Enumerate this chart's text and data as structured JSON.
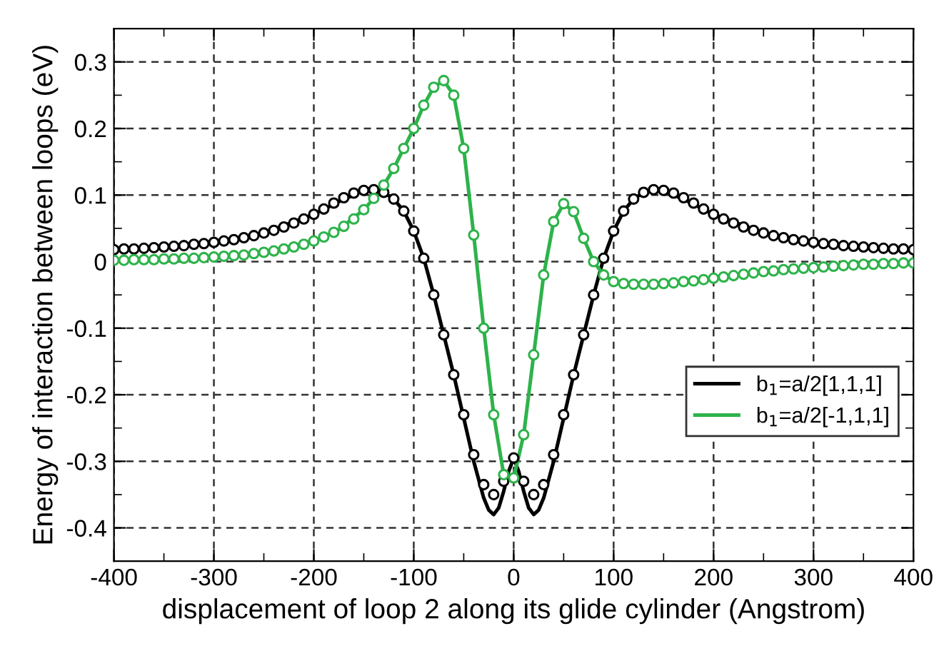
{
  "chart_data": {
    "type": "line",
    "xlabel": "displacement of loop 2 along its glide cylinder (Angstrom)",
    "ylabel": "Energy of interaction between loops (eV)",
    "xlim": [
      -400,
      400
    ],
    "xticks": [
      -400,
      -300,
      -200,
      -100,
      0,
      100,
      200,
      300,
      400
    ],
    "ylim": [
      -0.45,
      0.35
    ],
    "yticks": [
      -0.4,
      -0.3,
      -0.2,
      -0.1,
      0,
      0.1,
      0.2,
      0.3
    ],
    "grid": true,
    "legend": "right",
    "series": [
      {
        "name": "b$_{1}$=a/2[1,1,1]",
        "color": "#000000",
        "line_style": "solid",
        "marker": "none",
        "x": [
          -400,
          -350,
          -300,
          -250,
          -200,
          -175,
          -150,
          -140,
          -130,
          -120,
          -110,
          -100,
          -90,
          -80,
          -70,
          -60,
          -50,
          -40,
          -30,
          -25,
          -20,
          -15,
          -10,
          -5,
          0,
          5,
          10,
          15,
          20,
          25,
          30,
          40,
          50,
          60,
          70,
          80,
          90,
          100,
          110,
          120,
          130,
          140,
          150,
          175,
          200,
          250,
          300,
          350,
          400
        ],
        "values": [
          0.018,
          0.022,
          0.029,
          0.043,
          0.071,
          0.09,
          0.107,
          0.108,
          0.104,
          0.094,
          0.076,
          0.046,
          0.005,
          -0.05,
          -0.11,
          -0.17,
          -0.235,
          -0.3,
          -0.355,
          -0.373,
          -0.38,
          -0.37,
          -0.345,
          -0.315,
          -0.295,
          -0.315,
          -0.345,
          -0.37,
          -0.38,
          -0.373,
          -0.355,
          -0.3,
          -0.235,
          -0.17,
          -0.11,
          -0.05,
          0.005,
          0.046,
          0.076,
          0.094,
          0.104,
          0.108,
          0.107,
          0.09,
          0.071,
          0.043,
          0.029,
          0.022,
          0.018
        ]
      },
      {
        "name": "b$_{1}$=a/2[-1,1,1]",
        "color": "#2db34a",
        "line_style": "solid",
        "marker": "none",
        "x": [
          -400,
          -350,
          -300,
          -250,
          -200,
          -175,
          -150,
          -140,
          -130,
          -120,
          -110,
          -100,
          -90,
          -80,
          -70,
          -60,
          -50,
          -40,
          -30,
          -20,
          -10,
          0,
          10,
          20,
          30,
          40,
          50,
          60,
          70,
          80,
          90,
          100,
          120,
          150,
          200,
          250,
          300,
          350,
          400
        ],
        "values": [
          0.002,
          0.004,
          0.007,
          0.014,
          0.031,
          0.048,
          0.078,
          0.095,
          0.115,
          0.14,
          0.17,
          0.2,
          0.235,
          0.262,
          0.272,
          0.25,
          0.17,
          0.04,
          -0.1,
          -0.23,
          -0.32,
          -0.325,
          -0.26,
          -0.14,
          -0.02,
          0.06,
          0.087,
          0.075,
          0.035,
          0.0,
          -0.02,
          -0.03,
          -0.034,
          -0.033,
          -0.025,
          -0.015,
          -0.009,
          -0.004,
          -0.002
        ]
      },
      {
        "type": "scatter",
        "color": "#000000",
        "marker": "circle",
        "x": [
          -400,
          -390,
          -380,
          -370,
          -360,
          -350,
          -340,
          -330,
          -320,
          -310,
          -300,
          -290,
          -280,
          -270,
          -260,
          -250,
          -240,
          -230,
          -220,
          -210,
          -200,
          -190,
          -180,
          -170,
          -160,
          -150,
          -140,
          -130,
          -120,
          -110,
          -100,
          -90,
          -80,
          -70,
          -60,
          -50,
          -40,
          -30,
          -20,
          -10,
          0,
          10,
          20,
          30,
          40,
          50,
          60,
          70,
          80,
          90,
          100,
          110,
          120,
          130,
          140,
          150,
          160,
          170,
          180,
          190,
          200,
          210,
          220,
          230,
          240,
          250,
          260,
          270,
          280,
          290,
          300,
          310,
          320,
          330,
          340,
          350,
          360,
          370,
          380,
          390,
          400
        ],
        "values": [
          0.018,
          0.019,
          0.019,
          0.02,
          0.021,
          0.022,
          0.023,
          0.024,
          0.026,
          0.027,
          0.029,
          0.031,
          0.033,
          0.036,
          0.039,
          0.043,
          0.047,
          0.052,
          0.058,
          0.064,
          0.071,
          0.079,
          0.088,
          0.096,
          0.103,
          0.107,
          0.108,
          0.104,
          0.094,
          0.076,
          0.046,
          0.005,
          -0.05,
          -0.11,
          -0.17,
          -0.23,
          -0.29,
          -0.335,
          -0.35,
          -0.33,
          -0.295,
          -0.33,
          -0.35,
          -0.335,
          -0.29,
          -0.23,
          -0.17,
          -0.11,
          -0.05,
          0.005,
          0.046,
          0.076,
          0.094,
          0.104,
          0.108,
          0.107,
          0.103,
          0.096,
          0.088,
          0.079,
          0.071,
          0.064,
          0.058,
          0.052,
          0.047,
          0.043,
          0.039,
          0.036,
          0.033,
          0.031,
          0.029,
          0.027,
          0.026,
          0.024,
          0.023,
          0.022,
          0.021,
          0.02,
          0.019,
          0.019,
          0.018
        ]
      },
      {
        "type": "scatter",
        "color": "#2db34a",
        "marker": "circle",
        "x": [
          -400,
          -390,
          -380,
          -370,
          -360,
          -350,
          -340,
          -330,
          -320,
          -310,
          -300,
          -290,
          -280,
          -270,
          -260,
          -250,
          -240,
          -230,
          -220,
          -210,
          -200,
          -190,
          -180,
          -170,
          -160,
          -150,
          -140,
          -130,
          -120,
          -110,
          -100,
          -90,
          -80,
          -70,
          -60,
          -50,
          -40,
          -30,
          -20,
          -10,
          0,
          10,
          20,
          30,
          40,
          50,
          60,
          70,
          80,
          90,
          100,
          110,
          120,
          130,
          140,
          150,
          160,
          170,
          180,
          190,
          200,
          210,
          220,
          230,
          240,
          250,
          260,
          270,
          280,
          290,
          300,
          310,
          320,
          330,
          340,
          350,
          360,
          370,
          380,
          390,
          400
        ],
        "values": [
          0.002,
          0.002,
          0.003,
          0.003,
          0.003,
          0.004,
          0.004,
          0.005,
          0.005,
          0.006,
          0.007,
          0.008,
          0.009,
          0.01,
          0.012,
          0.014,
          0.016,
          0.019,
          0.022,
          0.026,
          0.031,
          0.037,
          0.044,
          0.053,
          0.064,
          0.078,
          0.095,
          0.115,
          0.14,
          0.17,
          0.2,
          0.235,
          0.262,
          0.272,
          0.25,
          0.17,
          0.04,
          -0.1,
          -0.23,
          -0.32,
          -0.325,
          -0.26,
          -0.14,
          -0.02,
          0.06,
          0.087,
          0.075,
          0.035,
          0.0,
          -0.02,
          -0.03,
          -0.033,
          -0.034,
          -0.034,
          -0.034,
          -0.033,
          -0.032,
          -0.03,
          -0.029,
          -0.027,
          -0.025,
          -0.023,
          -0.021,
          -0.019,
          -0.017,
          -0.015,
          -0.014,
          -0.012,
          -0.011,
          -0.01,
          -0.009,
          -0.008,
          -0.007,
          -0.006,
          -0.005,
          -0.004,
          -0.004,
          -0.003,
          -0.003,
          -0.002,
          -0.002
        ]
      }
    ]
  }
}
